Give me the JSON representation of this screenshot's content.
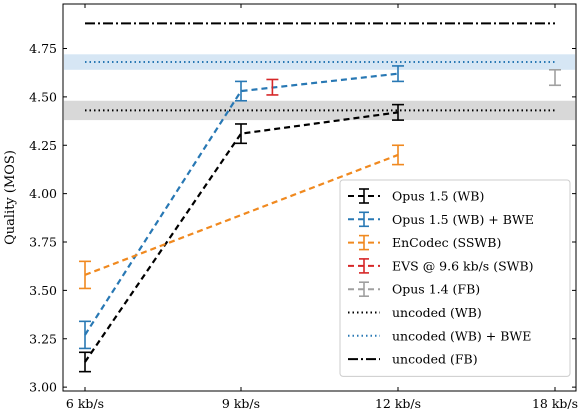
{
  "chart_data": {
    "type": "line",
    "ylabel": "Quality (MOS)",
    "x_categories": [
      "6 kb/s",
      "9 kb/s",
      "12 kb/s",
      "18 kb/s"
    ],
    "ylim": [
      2.98,
      4.98
    ],
    "yticks": [
      "3.00",
      "3.25",
      "3.50",
      "3.75",
      "4.00",
      "4.25",
      "4.50",
      "4.75"
    ],
    "legend_position": "lower-right",
    "series": [
      {
        "name": "Opus 1.5 (WB)",
        "color": "#000000",
        "dash": "6,4",
        "points": [
          {
            "x": "6 kb/s",
            "y": 3.13,
            "err": 0.05
          },
          {
            "x": "9 kb/s",
            "y": 4.31,
            "err": 0.05
          },
          {
            "x": "12 kb/s",
            "y": 4.42,
            "err": 0.04
          }
        ]
      },
      {
        "name": "Opus 1.5 (WB) + BWE",
        "color": "#2878b4",
        "dash": "6,4",
        "points": [
          {
            "x": "6 kb/s",
            "y": 3.27,
            "err": 0.07
          },
          {
            "x": "9 kb/s",
            "y": 4.53,
            "err": 0.05
          },
          {
            "x": "12 kb/s",
            "y": 4.62,
            "err": 0.04
          }
        ]
      },
      {
        "name": "EnCodec (SSWB)",
        "color": "#f0891f",
        "dash": "6,4",
        "points": [
          {
            "x": "6 kb/s",
            "y": 3.58,
            "err": 0.07
          },
          {
            "x": "12 kb/s",
            "y": 4.2,
            "err": 0.05
          }
        ]
      },
      {
        "name": "EVS @ 9.6 kb/s (SWB)",
        "color": "#d62728",
        "dash": "6,4",
        "points": [
          {
            "x": "9.6 kb/s",
            "y": 4.55,
            "err": 0.04
          }
        ]
      },
      {
        "name": "Opus 1.4 (FB)",
        "color": "#a0a0a0",
        "dash": "6,4",
        "points": [
          {
            "x": "18 kb/s",
            "y": 4.6,
            "err": 0.04
          }
        ]
      }
    ],
    "reference_lines": [
      {
        "name": "uncoded (WB)",
        "y": 4.43,
        "band": [
          4.38,
          4.48
        ],
        "color": "#000000",
        "dash": "1.5,3",
        "band_color": "#d8d8d8"
      },
      {
        "name": "uncoded (WB) + BWE",
        "y": 4.68,
        "band": [
          4.64,
          4.72
        ],
        "color": "#2878b4",
        "dash": "1.5,3",
        "band_color": "#d6e6f4"
      },
      {
        "name": "uncoded (FB)",
        "y": 4.88,
        "color": "#000000",
        "dash": "10,3,2,3"
      }
    ],
    "grid": false
  }
}
